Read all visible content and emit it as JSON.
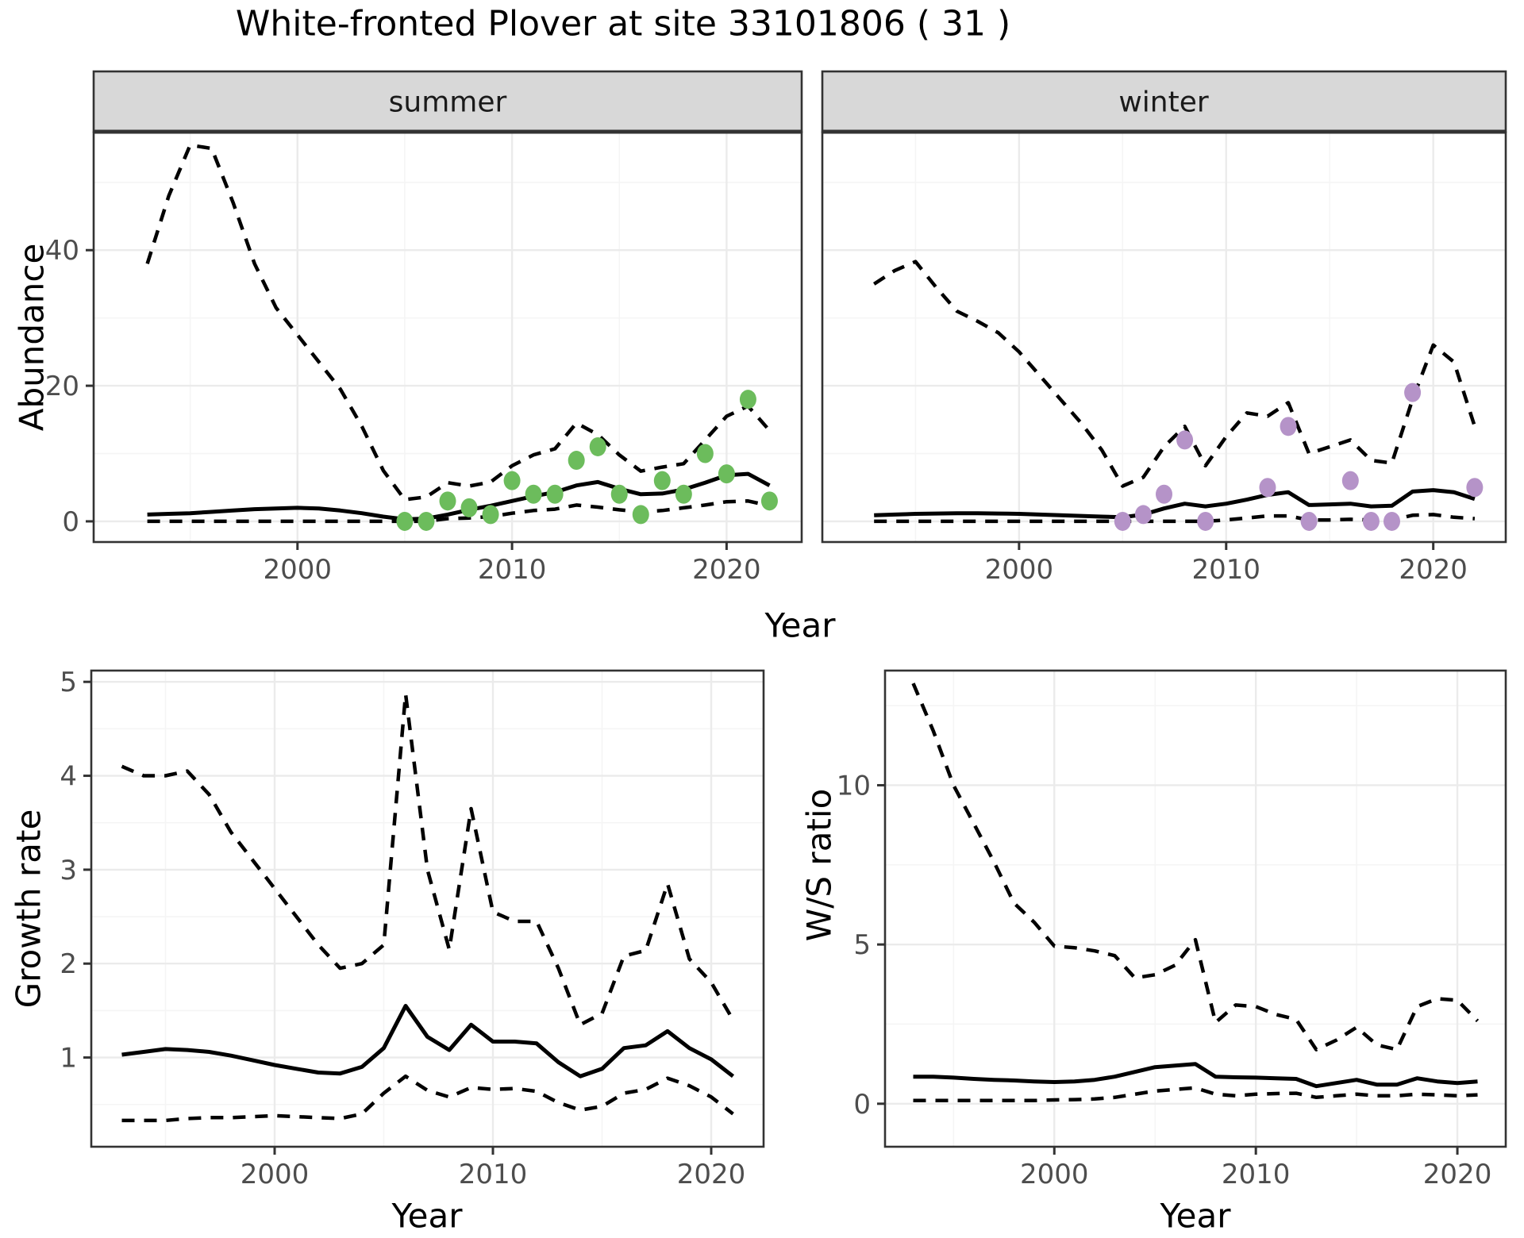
{
  "title": "White-fronted Plover at site 33101806 ( 31 )",
  "colors": {
    "summer_points": "#6cbc5c",
    "winter_points": "#b593c8",
    "line": "#000000",
    "grid_major": "#ebebeb",
    "grid_minor": "#f5f5f5",
    "strip_bg": "#d8d8d8",
    "panel_border": "#333333",
    "tick_label": "#4d4d4d",
    "panel_bg": "#ffffff"
  },
  "chart_data": [
    {
      "id": "abundance-summer",
      "type": "line",
      "facet_label": "summer",
      "ylabel": "Abundance",
      "xlabel": "Year",
      "show_y_axis": true,
      "xlim": [
        1990.5,
        2023.5
      ],
      "ylim": [
        -3.05,
        57.35
      ],
      "x_ticks": [
        2000,
        2010,
        2020
      ],
      "x_minor": [
        1995,
        2005,
        2015
      ],
      "y_ticks": [
        0,
        20,
        40
      ],
      "y_minor": [
        10,
        30,
        50
      ],
      "x": [
        1993,
        1994,
        1995,
        1996,
        1997,
        1998,
        1999,
        2000,
        2001,
        2002,
        2003,
        2004,
        2005,
        2006,
        2007,
        2008,
        2009,
        2010,
        2011,
        2012,
        2013,
        2014,
        2015,
        2016,
        2017,
        2018,
        2019,
        2020,
        2021,
        2022
      ],
      "series": [
        {
          "name": "median",
          "style": "solid",
          "values": [
            1.0,
            1.1,
            1.2,
            1.4,
            1.6,
            1.8,
            1.9,
            2.0,
            1.9,
            1.6,
            1.2,
            0.7,
            0.3,
            0.4,
            1.0,
            1.7,
            2.3,
            3.0,
            3.7,
            4.3,
            5.3,
            5.8,
            4.8,
            4.0,
            4.1,
            4.7,
            5.7,
            6.8,
            7.0,
            5.3
          ]
        },
        {
          "name": "upper_ci",
          "style": "dashed",
          "values": [
            38,
            48,
            55.5,
            55,
            47,
            38,
            31.5,
            27.5,
            23.5,
            19.5,
            14,
            7.5,
            3.2,
            3.6,
            5.7,
            5.2,
            5.8,
            8.2,
            9.8,
            10.7,
            14.5,
            12.8,
            9.8,
            7.4,
            8.0,
            8.5,
            12,
            15.5,
            17,
            13.4
          ]
        },
        {
          "name": "lower_ci",
          "style": "dashed",
          "values": [
            0,
            0,
            0,
            0,
            0,
            0,
            0,
            0,
            0,
            0,
            0,
            0,
            0,
            0,
            0.4,
            0.5,
            0.7,
            1.2,
            1.6,
            1.8,
            2.4,
            2.1,
            1.7,
            1.4,
            1.6,
            2.0,
            2.4,
            2.9,
            3.0,
            2.3
          ]
        }
      ],
      "points": {
        "name": "observed-summer-counts",
        "color": "#6cbc5c",
        "x": [
          2005,
          2006,
          2007,
          2008,
          2009,
          2010,
          2011,
          2012,
          2013,
          2014,
          2015,
          2016,
          2017,
          2018,
          2019,
          2020,
          2021,
          2022
        ],
        "y": [
          0,
          0,
          3,
          2,
          1,
          6,
          4,
          4,
          9,
          11,
          4,
          1,
          6,
          4,
          10,
          7,
          18,
          3
        ]
      }
    },
    {
      "id": "abundance-winter",
      "type": "line",
      "facet_label": "winter",
      "ylabel": "Abundance",
      "xlabel": "Year",
      "show_y_axis": false,
      "xlim": [
        1990.5,
        2023.5
      ],
      "ylim": [
        -3.05,
        57.35
      ],
      "x_ticks": [
        2000,
        2010,
        2020
      ],
      "x_minor": [
        1995,
        2005,
        2015
      ],
      "y_ticks": [
        0,
        20,
        40
      ],
      "y_minor": [
        10,
        30,
        50
      ],
      "x": [
        1993,
        1994,
        1995,
        1996,
        1997,
        1998,
        1999,
        2000,
        2001,
        2002,
        2003,
        2004,
        2005,
        2006,
        2007,
        2008,
        2009,
        2010,
        2011,
        2012,
        2013,
        2014,
        2015,
        2016,
        2017,
        2018,
        2019,
        2020,
        2021,
        2022
      ],
      "series": [
        {
          "name": "median",
          "style": "solid",
          "values": [
            0.9,
            1.0,
            1.1,
            1.15,
            1.2,
            1.2,
            1.15,
            1.1,
            1.0,
            0.9,
            0.8,
            0.7,
            0.6,
            1.0,
            1.9,
            2.6,
            2.2,
            2.6,
            3.2,
            3.9,
            4.3,
            2.4,
            2.5,
            2.6,
            2.2,
            2.3,
            4.4,
            4.6,
            4.3,
            3.3
          ]
        },
        {
          "name": "upper_ci",
          "style": "dashed",
          "values": [
            35,
            37,
            38.3,
            34.5,
            31,
            29.5,
            27.8,
            25,
            21.5,
            18,
            14.5,
            10.5,
            5.2,
            6.5,
            11,
            14,
            8.2,
            12.5,
            16,
            15.5,
            17.5,
            10,
            11,
            12,
            9,
            8.6,
            18,
            26,
            23.5,
            14
          ]
        },
        {
          "name": "lower_ci",
          "style": "dashed",
          "values": [
            0,
            0,
            0,
            0,
            0,
            0,
            0,
            0,
            0,
            0,
            0,
            0,
            0,
            0,
            0,
            0,
            0,
            0.2,
            0.5,
            0.8,
            0.8,
            0.2,
            0.2,
            0.3,
            0.2,
            0.2,
            0.9,
            1.0,
            0.6,
            0.4
          ]
        }
      ],
      "points": {
        "name": "observed-winter-counts",
        "color": "#b593c8",
        "x": [
          2005,
          2006,
          2007,
          2008,
          2009,
          2012,
          2013,
          2014,
          2016,
          2017,
          2018,
          2019,
          2022
        ],
        "y": [
          0,
          1,
          4,
          12,
          0,
          5,
          14,
          0,
          6,
          0,
          0,
          19,
          5
        ]
      }
    },
    {
      "id": "growth-rate",
      "type": "line",
      "facet_label": "",
      "ylabel": "Growth rate",
      "xlabel": "Year",
      "show_y_axis": true,
      "xlim": [
        1991.6,
        2022.4
      ],
      "ylim": [
        0.05,
        5.12
      ],
      "x_ticks": [
        2000,
        2010,
        2020
      ],
      "x_minor": [
        1995,
        2005,
        2015
      ],
      "y_ticks": [
        1,
        2,
        3,
        4,
        5
      ],
      "y_minor": [
        0.5,
        1.5,
        2.5,
        3.5,
        4.5
      ],
      "x": [
        1993,
        1994,
        1995,
        1996,
        1997,
        1998,
        1999,
        2000,
        2001,
        2002,
        2003,
        2004,
        2005,
        2006,
        2007,
        2008,
        2009,
        2010,
        2011,
        2012,
        2013,
        2014,
        2015,
        2016,
        2017,
        2018,
        2019,
        2020,
        2021
      ],
      "series": [
        {
          "name": "median",
          "style": "solid",
          "values": [
            1.03,
            1.06,
            1.09,
            1.08,
            1.06,
            1.02,
            0.97,
            0.92,
            0.88,
            0.84,
            0.83,
            0.9,
            1.1,
            1.55,
            1.22,
            1.08,
            1.35,
            1.17,
            1.17,
            1.15,
            0.95,
            0.8,
            0.88,
            1.1,
            1.13,
            1.28,
            1.1,
            0.98,
            0.8
          ]
        },
        {
          "name": "upper_ci",
          "style": "dashed",
          "values": [
            4.1,
            4.0,
            4.0,
            4.05,
            3.8,
            3.4,
            3.1,
            2.8,
            2.5,
            2.2,
            1.95,
            2.0,
            2.2,
            4.87,
            3.0,
            2.15,
            3.65,
            2.55,
            2.45,
            2.45,
            1.95,
            1.35,
            1.47,
            2.08,
            2.14,
            2.85,
            2.05,
            1.8,
            1.4
          ]
        },
        {
          "name": "lower_ci",
          "style": "dashed",
          "values": [
            0.33,
            0.33,
            0.33,
            0.35,
            0.36,
            0.36,
            0.37,
            0.38,
            0.37,
            0.36,
            0.35,
            0.4,
            0.62,
            0.8,
            0.65,
            0.58,
            0.68,
            0.66,
            0.67,
            0.64,
            0.52,
            0.44,
            0.48,
            0.62,
            0.66,
            0.78,
            0.7,
            0.58,
            0.4
          ]
        }
      ],
      "points": null
    },
    {
      "id": "ws-ratio",
      "type": "line",
      "facet_label": "",
      "ylabel": "W/S ratio",
      "xlabel": "Year",
      "show_y_axis": true,
      "xlim": [
        1991.6,
        2022.4
      ],
      "ylim": [
        -1.35,
        13.6
      ],
      "x_ticks": [
        2000,
        2010,
        2020
      ],
      "x_minor": [
        1995,
        2005,
        2015
      ],
      "y_ticks": [
        0,
        5,
        10
      ],
      "y_minor": [
        2.5,
        7.5,
        12.5
      ],
      "x": [
        1993,
        1994,
        1995,
        1996,
        1997,
        1998,
        1999,
        2000,
        2001,
        2002,
        2003,
        2004,
        2005,
        2006,
        2007,
        2008,
        2009,
        2010,
        2011,
        2012,
        2013,
        2014,
        2015,
        2016,
        2017,
        2018,
        2019,
        2020,
        2021
      ],
      "series": [
        {
          "name": "median",
          "style": "solid",
          "values": [
            0.85,
            0.85,
            0.82,
            0.78,
            0.75,
            0.73,
            0.7,
            0.68,
            0.7,
            0.75,
            0.85,
            1.0,
            1.15,
            1.2,
            1.25,
            0.85,
            0.83,
            0.82,
            0.8,
            0.78,
            0.55,
            0.65,
            0.75,
            0.6,
            0.6,
            0.8,
            0.7,
            0.65,
            0.7
          ]
        },
        {
          "name": "upper_ci",
          "style": "dashed",
          "values": [
            13.2,
            11.7,
            10.0,
            8.8,
            7.6,
            6.3,
            5.7,
            4.95,
            4.9,
            4.8,
            4.65,
            3.95,
            4.05,
            4.35,
            5.15,
            2.55,
            3.1,
            3.05,
            2.8,
            2.65,
            1.7,
            2.0,
            2.4,
            1.85,
            1.7,
            3.05,
            3.3,
            3.25,
            2.6
          ]
        },
        {
          "name": "lower_ci",
          "style": "dashed",
          "values": [
            0.1,
            0.1,
            0.1,
            0.1,
            0.1,
            0.1,
            0.1,
            0.12,
            0.13,
            0.15,
            0.2,
            0.3,
            0.4,
            0.45,
            0.5,
            0.3,
            0.25,
            0.3,
            0.32,
            0.33,
            0.2,
            0.25,
            0.3,
            0.25,
            0.25,
            0.3,
            0.28,
            0.25,
            0.28
          ]
        }
      ],
      "points": null
    }
  ]
}
